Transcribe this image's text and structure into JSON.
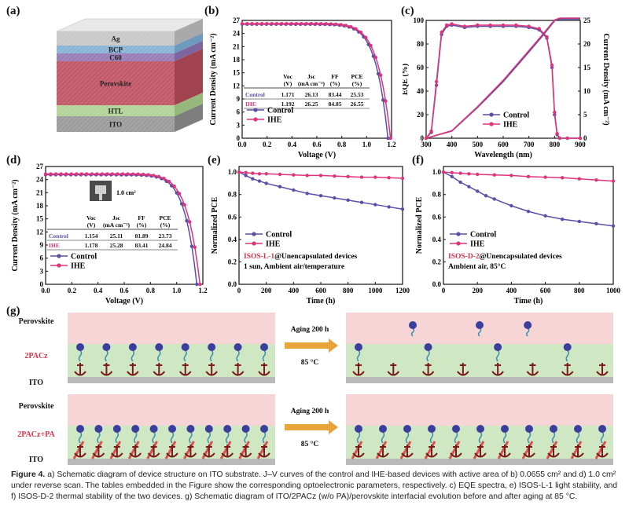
{
  "panels": {
    "a": {
      "label": "(a)",
      "layers": [
        "Ag",
        "BCP",
        "C60",
        "Perovskite",
        "HTL",
        "ITO"
      ]
    },
    "b": {
      "label": "(b)",
      "xlabel": "Voltage (V)",
      "ylabel": "Current Density (mA cm⁻²)",
      "legend": [
        "Control",
        "IHE"
      ],
      "table": {
        "headers": [
          [
            "Voc",
            "(V)"
          ],
          [
            "Jsc",
            "(mA cm⁻²)"
          ],
          [
            "FF",
            "(%)"
          ],
          [
            "PCE",
            "(%)"
          ]
        ],
        "rows": [
          [
            "Control",
            "1.171",
            "26.13",
            "83.44",
            "25.53"
          ],
          [
            "IHE",
            "1.192",
            "26.25",
            "84.85",
            "26.55"
          ]
        ]
      }
    },
    "c": {
      "label": "(c)",
      "xlabel": "Wavelength (nm)",
      "ylabel_left": "EQE (%)",
      "ylabel_right": "Current Density (mA cm⁻²)",
      "legend": [
        "Control",
        "IHE"
      ]
    },
    "d": {
      "label": "(d)",
      "xlabel": "Voltage (V)",
      "ylabel": "Current Density (mA cm⁻²)",
      "area": "1.0 cm²",
      "legend": [
        "Control",
        "IHE"
      ],
      "table": {
        "headers": [
          [
            "Voc",
            "(V)"
          ],
          [
            "Jsc",
            "(mA cm⁻²)"
          ],
          [
            "FF",
            "(%)"
          ],
          [
            "PCE",
            "(%)"
          ]
        ],
        "rows": [
          [
            "Control",
            "1.154",
            "25.11",
            "81.89",
            "23.73"
          ],
          [
            "IHE",
            "1.178",
            "25.28",
            "83.41",
            "24.84"
          ]
        ]
      }
    },
    "e": {
      "label": "(e)",
      "xlabel": "Time (h)",
      "ylabel": "Normalized PCE",
      "legend": [
        "Control",
        "IHE"
      ],
      "note1_red": "ISOS-L-1",
      "note1_rest": "@Unencapsulated devices",
      "note2": "1 sun, Ambient air/temperature"
    },
    "f": {
      "label": "(f)",
      "xlabel": "Time (h)",
      "ylabel": "Normalized PCE",
      "legend": [
        "Control",
        "IHE"
      ],
      "note1_red": "ISOS-D-2",
      "note1_rest": "@Unencapsulated devices",
      "note2": "Ambient air, 85°C"
    },
    "g": {
      "label": "(g)",
      "perovskite": "Perovskite",
      "ito": "ITO",
      "row1": "2PACz",
      "row2": "2PACz+PA",
      "aging": "Aging 200 h",
      "temp": "85 °C"
    }
  },
  "caption": {
    "lead": "Figure 4.",
    "text": "a) Schematic diagram of device structure on ITO substrate. J–V curves of the control and IHE-based devices with active area of b) 0.0655 cm² and d) 1.0 cm² under reverse scan. The tables embedded in the Figure show the corresponding optoelectronic parameters, respectively. c) EQE spectra, e) ISOS-L-1 light stability, and f) ISOS-D-2 thermal stability of the two devices. g) Schematic diagram of ITO/2PACz (w/o PA)/perovskite interfacial evolution before and after aging at 85 °C."
  },
  "colors": {
    "control": "#5a4fa8",
    "ihe": "#e0337a"
  },
  "chart_data": [
    {
      "panel": "b",
      "type": "line",
      "xlabel": "Voltage (V)",
      "ylabel": "Current Density (mA cm⁻²)",
      "xlim": [
        0,
        1.2
      ],
      "ylim": [
        0,
        27
      ],
      "xticks": [
        0.0,
        0.2,
        0.4,
        0.6,
        0.8,
        1.0,
        1.2
      ],
      "yticks": [
        0,
        3,
        6,
        9,
        12,
        15,
        18,
        21,
        24,
        27
      ],
      "series": [
        {
          "name": "Control",
          "voc": 1.171,
          "jsc": 26.13,
          "ff": 83.44
        },
        {
          "name": "IHE",
          "voc": 1.192,
          "jsc": 26.25,
          "ff": 84.85
        }
      ]
    },
    {
      "panel": "c",
      "type": "line",
      "xlabel": "Wavelength (nm)",
      "xlim": [
        300,
        900
      ],
      "ylim_left": [
        0,
        100
      ],
      "ylim_right": [
        0,
        25
      ],
      "xticks": [
        300,
        400,
        500,
        600,
        700,
        800,
        900
      ],
      "yticks_left": [
        0,
        20,
        40,
        60,
        80,
        100
      ],
      "yticks_right": [
        0,
        5,
        10,
        15,
        20,
        25
      ],
      "eqe": {
        "x": [
          300,
          320,
          340,
          360,
          380,
          400,
          450,
          500,
          550,
          600,
          650,
          700,
          740,
          770,
          790,
          800,
          810,
          820,
          850,
          900
        ],
        "control": [
          0,
          5,
          45,
          88,
          95,
          96,
          94,
          95,
          95,
          95,
          95,
          94,
          92,
          85,
          60,
          20,
          3,
          0,
          0,
          0
        ],
        "ihe": [
          0,
          6,
          48,
          90,
          96,
          97,
          95,
          96,
          96,
          96,
          96,
          95,
          93,
          86,
          62,
          22,
          4,
          0,
          0,
          0
        ]
      },
      "integrated": {
        "x": [
          300,
          400,
          500,
          600,
          700,
          750,
          800,
          820,
          900
        ],
        "control": [
          0,
          1.5,
          6.5,
          12,
          18.3,
          21.5,
          24.9,
          25.3,
          25.3
        ],
        "ihe": [
          0,
          1.6,
          6.7,
          12.3,
          18.6,
          21.8,
          25.1,
          25.5,
          25.5
        ]
      }
    },
    {
      "panel": "d",
      "type": "line",
      "xlabel": "Voltage (V)",
      "xlim": [
        0,
        1.2
      ],
      "ylim": [
        0,
        27
      ],
      "xticks": [
        0.0,
        0.2,
        0.4,
        0.6,
        0.8,
        1.0,
        1.2
      ],
      "yticks": [
        0,
        3,
        6,
        9,
        12,
        15,
        18,
        21,
        24,
        27
      ],
      "series": [
        {
          "name": "Control",
          "voc": 1.154,
          "jsc": 25.11,
          "ff": 81.89
        },
        {
          "name": "IHE",
          "voc": 1.178,
          "jsc": 25.28,
          "ff": 83.41
        }
      ]
    },
    {
      "panel": "e",
      "type": "line",
      "xlabel": "Time (h)",
      "ylabel": "Normalized PCE",
      "xlim": [
        0,
        1200
      ],
      "ylim": [
        0,
        1.05
      ],
      "xticks": [
        0,
        200,
        400,
        600,
        800,
        1000,
        1200
      ],
      "yticks": [
        0.0,
        0.2,
        0.4,
        0.6,
        0.8,
        1.0
      ],
      "series": [
        {
          "name": "Control",
          "x": [
            0,
            50,
            100,
            150,
            200,
            300,
            400,
            500,
            600,
            700,
            800,
            900,
            1000,
            1100,
            1200
          ],
          "y": [
            1.0,
            0.97,
            0.94,
            0.92,
            0.9,
            0.87,
            0.84,
            0.81,
            0.79,
            0.77,
            0.75,
            0.73,
            0.71,
            0.69,
            0.67
          ]
        },
        {
          "name": "IHE",
          "x": [
            0,
            50,
            100,
            150,
            200,
            300,
            400,
            500,
            600,
            700,
            800,
            900,
            1000,
            1100,
            1200
          ],
          "y": [
            1.0,
            0.995,
            0.99,
            0.985,
            0.985,
            0.98,
            0.975,
            0.97,
            0.97,
            0.965,
            0.96,
            0.955,
            0.955,
            0.95,
            0.945
          ]
        }
      ]
    },
    {
      "panel": "f",
      "type": "line",
      "xlabel": "Time (h)",
      "ylabel": "Normalized PCE",
      "xlim": [
        0,
        1000
      ],
      "ylim": [
        0,
        1.05
      ],
      "xticks": [
        0,
        200,
        400,
        600,
        800,
        1000
      ],
      "yticks": [
        0.0,
        0.2,
        0.4,
        0.6,
        0.8,
        1.0
      ],
      "series": [
        {
          "name": "Control",
          "x": [
            0,
            50,
            100,
            150,
            200,
            250,
            300,
            400,
            500,
            600,
            700,
            800,
            900,
            1000
          ],
          "y": [
            1.0,
            0.96,
            0.91,
            0.87,
            0.83,
            0.79,
            0.76,
            0.7,
            0.65,
            0.61,
            0.58,
            0.56,
            0.54,
            0.52
          ]
        },
        {
          "name": "IHE",
          "x": [
            0,
            50,
            100,
            150,
            200,
            300,
            400,
            500,
            600,
            700,
            800,
            900,
            1000
          ],
          "y": [
            1.0,
            0.995,
            0.99,
            0.985,
            0.98,
            0.975,
            0.97,
            0.96,
            0.955,
            0.95,
            0.94,
            0.93,
            0.92
          ]
        }
      ]
    }
  ]
}
